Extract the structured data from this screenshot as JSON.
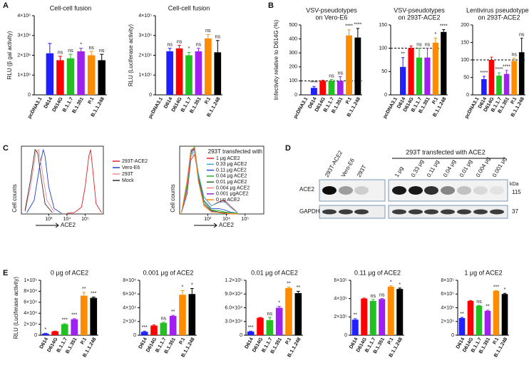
{
  "chart_data": [
    {
      "type": "bar",
      "panel": "A",
      "title": [
        "Cell-cell fusion"
      ],
      "ylabel": "RLU (β gal activity)",
      "categories": [
        "pcDNA3.1",
        "D614",
        "D614G",
        "B.1.1.7",
        "B.1.351",
        "P.1",
        "B.1.1.248"
      ],
      "colors": [
        "#000000",
        "#1f1fff",
        "#ff0000",
        "#22c022",
        "#a020f0",
        "#ff8c00",
        "#000000"
      ],
      "values": [
        0,
        2100000,
        1750000,
        1850000,
        2200000,
        2000000,
        1750000
      ],
      "errors": [
        0,
        500000,
        200000,
        200000,
        150000,
        200000,
        300000
      ],
      "sig": [
        null,
        null,
        "ns",
        "ns",
        "*",
        "ns",
        "ns"
      ],
      "ylim": [
        0,
        4000000
      ],
      "yticks": [
        0,
        {
          "value": 1000000,
          "label": "1×10⁶"
        },
        {
          "value": 2000000,
          "label": "2×10⁶"
        },
        {
          "value": 3000000,
          "label": "3×10⁶"
        },
        {
          "value": 4000000,
          "label": "4×10⁶"
        }
      ]
    },
    {
      "type": "bar",
      "title": [
        "Cell-cell fusion"
      ],
      "ylabel": "RLU (Luciferase activity)",
      "categories": [
        "pcDNA3.1",
        "D614",
        "D614G",
        "B.1.1.7",
        "B.1.351",
        "P.1",
        "B.1.1.248"
      ],
      "colors": [
        "#000000",
        "#1f1fff",
        "#ff0000",
        "#22c022",
        "#a020f0",
        "#ff8c00",
        "#000000"
      ],
      "values": [
        0,
        220000,
        235000,
        200000,
        220000,
        285000,
        215000
      ],
      "errors": [
        0,
        15000,
        15000,
        15000,
        15000,
        20000,
        60000
      ],
      "sig": [
        null,
        "ns",
        "ns",
        "*",
        "ns",
        "ns",
        "ns"
      ],
      "ylim": [
        0,
        400000
      ],
      "yticks": [
        0,
        {
          "value": 100000,
          "label": "1×10⁵"
        },
        {
          "value": 200000,
          "label": "2×10⁵"
        },
        {
          "value": 300000,
          "label": "3×10⁵"
        },
        {
          "value": 400000,
          "label": "4×10⁵"
        }
      ]
    },
    {
      "type": "bar",
      "panel": "B",
      "title": [
        "VSV-pseudotypes",
        "on Vero-E6"
      ],
      "ylabel": "Infectivity relative to D614G (%)",
      "categories": [
        "pcDNA3.1",
        "D614",
        "D614G",
        "B.1.1.7",
        "B.1.351",
        "P.1",
        "B.1.1.248"
      ],
      "colors": [
        "#000000",
        "#1f1fff",
        "#ff0000",
        "#22c022",
        "#a020f0",
        "#ff8c00",
        "#000000"
      ],
      "values": [
        0,
        50,
        100,
        100,
        100,
        425,
        410
      ],
      "errors": [
        0,
        10,
        5,
        10,
        30,
        40,
        65
      ],
      "sig": [
        null,
        "****",
        null,
        "ns",
        "ns",
        "****",
        "****"
      ],
      "ref_line": 100,
      "ylim": [
        0,
        500
      ],
      "yticks": [
        0,
        100,
        200,
        300,
        400,
        500
      ]
    },
    {
      "type": "bar",
      "title": [
        "VSV-pseudotypes",
        "on 293T-ACE2"
      ],
      "categories": [
        "pcDNA3.1",
        "D614",
        "D614G",
        "B.1.1.7",
        "B.1.351",
        "P.1",
        "B.1.1.248"
      ],
      "colors": [
        "#000000",
        "#1f1fff",
        "#ff0000",
        "#22c022",
        "#a020f0",
        "#ff8c00",
        "#000000"
      ],
      "values": [
        0,
        60,
        100,
        80,
        80,
        112,
        135
      ],
      "errors": [
        0,
        20,
        5,
        20,
        20,
        10,
        5
      ],
      "sig": [
        null,
        "**",
        null,
        "ns",
        "ns",
        "*",
        "****"
      ],
      "ref_line": 100,
      "ylim": [
        0,
        150
      ],
      "yticks": [
        0,
        50,
        100,
        150
      ]
    },
    {
      "type": "bar",
      "title": [
        "Lentivirus pseudotypes",
        "on 293T-ACE2"
      ],
      "categories": [
        "pcDNA3.1",
        "D614",
        "D614G",
        "B.1.1.7",
        "B.1.351",
        "P.1",
        "B.1.1.248"
      ],
      "colors": [
        "#000000",
        "#1f1fff",
        "#ff0000",
        "#22c022",
        "#a020f0",
        "#ff8c00",
        "#000000"
      ],
      "values": [
        0,
        45,
        100,
        55,
        60,
        97,
        122
      ],
      "errors": [
        0,
        8,
        8,
        8,
        10,
        8,
        40
      ],
      "sig": [
        null,
        "****",
        null,
        "****",
        "****",
        "ns",
        "ns"
      ],
      "ref_line": 100,
      "ylim": [
        0,
        200
      ],
      "yticks": [
        0,
        50,
        100,
        150,
        200
      ]
    },
    {
      "type": "line",
      "panel": "C",
      "ylabel": "Cell counts",
      "xlabel": "ACE2",
      "xlim": [
        1.5,
        6
      ],
      "ylim": [
        0,
        100
      ],
      "xticks": [
        {
          "value": 3,
          "label": "10³"
        },
        {
          "value": 4,
          "label": "10⁴"
        },
        {
          "value": 5,
          "label": "10⁵"
        }
      ],
      "series": [
        {
          "name": "293T-ACE2",
          "color": "#e0202a",
          "x": [
            4.0,
            4.4,
            4.8,
            5.0,
            5.2,
            5.3,
            5.4,
            5.6,
            5.9
          ],
          "values": [
            1,
            2,
            10,
            40,
            85,
            95,
            70,
            15,
            2
          ]
        },
        {
          "name": "Vero-E6",
          "color": "#1f3fd0",
          "x": [
            1.8,
            2.2,
            2.5,
            2.7,
            2.8,
            3.0,
            3.3,
            3.7
          ],
          "values": [
            2,
            20,
            70,
            95,
            85,
            40,
            8,
            1
          ]
        },
        {
          "name": "293T",
          "color": "#f08a8a",
          "x": [
            1.7,
            2.0,
            2.3,
            2.45,
            2.6,
            2.9,
            3.3
          ],
          "values": [
            3,
            40,
            92,
            95,
            70,
            20,
            3
          ]
        },
        {
          "name": "Mock",
          "color": "#333333",
          "x": [
            1.7,
            2.0,
            2.25,
            2.4,
            2.55,
            2.8,
            3.2
          ],
          "values": [
            5,
            50,
            95,
            90,
            60,
            15,
            2
          ]
        }
      ]
    },
    {
      "type": "line",
      "title": [
        "293T transfected with"
      ],
      "ylabel": "Cell counts",
      "xlabel": "ACE2",
      "xlim": [
        1.5,
        6
      ],
      "ylim": [
        0,
        100
      ],
      "xticks": [
        {
          "value": 3,
          "label": "10³"
        },
        {
          "value": 4,
          "label": "10⁴"
        },
        {
          "value": 5,
          "label": "10⁵"
        }
      ],
      "series": [
        {
          "name": "1 μg ACE2",
          "color": "#e0202a",
          "x": [
            1.6,
            1.9,
            2.1,
            2.3,
            2.5,
            2.8,
            3.2,
            3.6,
            3.9,
            4.2,
            4.6
          ],
          "values": [
            2,
            30,
            80,
            88,
            55,
            25,
            12,
            18,
            20,
            12,
            2
          ]
        },
        {
          "name": "0.33 μg ACE2",
          "color": "#3fa9d6",
          "x": [
            1.6,
            1.9,
            2.1,
            2.3,
            2.5,
            2.8,
            3.2,
            3.6,
            3.9,
            4.2,
            4.6
          ],
          "values": [
            2,
            35,
            85,
            92,
            60,
            25,
            12,
            17,
            18,
            10,
            2
          ]
        },
        {
          "name": "0.11 μg ACE2",
          "color": "#2b4fd8",
          "x": [
            1.6,
            1.9,
            2.1,
            2.3,
            2.5,
            2.8,
            3.2,
            3.6,
            3.9,
            4.2,
            4.6
          ],
          "values": [
            2,
            40,
            88,
            95,
            55,
            20,
            8,
            8,
            6,
            3,
            1
          ]
        },
        {
          "name": "0.04 μg ACE2",
          "color": "#22b022",
          "x": [
            1.6,
            1.9,
            2.1,
            2.3,
            2.5,
            2.8,
            3.2,
            3.6,
            3.9,
            4.2,
            4.6
          ],
          "values": [
            2,
            40,
            90,
            100,
            55,
            18,
            6,
            5,
            3,
            2,
            1
          ]
        },
        {
          "name": "0.01 μg ACE2",
          "color": "#1e6e1e",
          "x": [
            1.6,
            1.9,
            2.1,
            2.3,
            2.5,
            2.8,
            3.2,
            3.6,
            3.9,
            4.2,
            4.6
          ],
          "values": [
            2,
            45,
            92,
            96,
            52,
            15,
            5,
            3,
            2,
            1,
            0
          ]
        },
        {
          "name": "0.004 μg ACE2",
          "color": "#f08080",
          "x": [
            1.6,
            1.9,
            2.1,
            2.3,
            2.5,
            2.8,
            3.2,
            3.6,
            3.9,
            4.2,
            4.6
          ],
          "values": [
            2,
            45,
            90,
            94,
            50,
            14,
            4,
            2,
            1,
            1,
            0
          ]
        },
        {
          "name": "0.001 μgACE2",
          "color": "#8a2be2",
          "x": [
            1.6,
            1.9,
            2.1,
            2.3,
            2.5,
            2.8,
            3.2,
            3.6,
            3.9,
            4.2,
            4.6
          ],
          "values": [
            2,
            48,
            93,
            97,
            50,
            12,
            4,
            2,
            1,
            0,
            0
          ]
        },
        {
          "name": "0 μg ACE2",
          "color": "#ff8c00",
          "x": [
            1.6,
            1.9,
            2.1,
            2.3,
            2.5,
            2.8,
            3.2,
            3.6,
            3.9,
            4.2,
            4.6
          ],
          "values": [
            2,
            50,
            95,
            98,
            48,
            12,
            3,
            2,
            1,
            0,
            0
          ]
        }
      ]
    },
    {
      "type": "bar",
      "panel": "E",
      "title": [
        "0 μg of ACE2"
      ],
      "ylabel": "RLU (Luciferase activity)",
      "categories": [
        "D614",
        "D614G",
        "B.1.1.7",
        "B.1.351",
        "P.1",
        "B.1.1.248"
      ],
      "colors": [
        "#1f1fff",
        "#ff0000",
        "#22c022",
        "#a020f0",
        "#ff8c00",
        "#000000"
      ],
      "values": [
        3000,
        7000,
        20000,
        29000,
        72000,
        68000
      ],
      "errors": [
        500,
        500,
        1000,
        1000,
        6000,
        1500
      ],
      "sig": [
        "*",
        null,
        "***",
        "***",
        "**",
        "***"
      ],
      "ylim": [
        0,
        100000
      ],
      "yticks": [
        0,
        {
          "value": 20000,
          "label": "2×10⁴"
        },
        {
          "value": 40000,
          "label": "4×10⁴"
        },
        {
          "value": 60000,
          "label": "6×10⁴"
        },
        {
          "value": 80000,
          "label": "8×10⁴"
        },
        {
          "value": 100000,
          "label": "1×10⁵"
        }
      ]
    },
    {
      "type": "bar",
      "title": [
        "0.001 μg of ACE2"
      ],
      "categories": [
        "D614",
        "D614G",
        "B.1.1.7",
        "B.1.351",
        "P.1",
        "B.1.1.248"
      ],
      "colors": [
        "#1f1fff",
        "#ff0000",
        "#22c022",
        "#a020f0",
        "#ff8c00",
        "#000000"
      ],
      "values": [
        5000,
        14000,
        18000,
        28000,
        59000,
        60000
      ],
      "errors": [
        1000,
        1000,
        1000,
        1000,
        6000,
        8000
      ],
      "sig": [
        "***",
        null,
        "ns",
        "**",
        "*",
        "*"
      ],
      "ylim": [
        0,
        80000
      ],
      "yticks": [
        0,
        {
          "value": 20000,
          "label": "2×10⁴"
        },
        {
          "value": 40000,
          "label": "4×10⁴"
        },
        {
          "value": 60000,
          "label": "6×10⁴"
        },
        {
          "value": 80000,
          "label": "8×10⁴"
        }
      ]
    },
    {
      "type": "bar",
      "title": [
        "0.01 μg of ACE2"
      ],
      "categories": [
        "D614",
        "D614G",
        "B.1.1.7",
        "B.1.351",
        "P.1",
        "B.1.1.248"
      ],
      "colors": [
        "#1f1fff",
        "#ff0000",
        "#22c022",
        "#a020f0",
        "#ff8c00",
        "#000000"
      ],
      "values": [
        8000,
        38000,
        33000,
        60000,
        103000,
        92000
      ],
      "errors": [
        1000,
        1000,
        6000,
        3000,
        2000,
        4000
      ],
      "sig": [
        "***",
        null,
        "ns",
        "*",
        "**",
        "**"
      ],
      "ylim": [
        0,
        120000
      ],
      "yticks": [
        0,
        {
          "value": 30000,
          "label": "3.0×10⁴"
        },
        {
          "value": 60000,
          "label": "6.0×10⁴"
        },
        {
          "value": 90000,
          "label": "9.0×10⁴"
        },
        {
          "value": 120000,
          "label": "1.2×10⁵"
        }
      ]
    },
    {
      "type": "bar",
      "title": [
        "0.11 μg of ACE2"
      ],
      "categories": [
        "D614",
        "D614G",
        "B.1.1.7",
        "B.1.351",
        "P.1",
        "B.1.1.248"
      ],
      "colors": [
        "#1f1fff",
        "#ff0000",
        "#22c022",
        "#a020f0",
        "#ff8c00",
        "#000000"
      ],
      "values": [
        170000,
        400000,
        375000,
        395000,
        530000,
        505000
      ],
      "errors": [
        10000,
        5000,
        15000,
        5000,
        10000,
        10000
      ],
      "sig": [
        "**",
        null,
        "ns",
        "ns",
        "*",
        "*"
      ],
      "ylim": [
        0,
        600000
      ],
      "yticks": [
        0,
        {
          "value": 200000,
          "label": "2×10⁵"
        },
        {
          "value": 400000,
          "label": "4×10⁵"
        },
        {
          "value": 600000,
          "label": "6×10⁵"
        }
      ]
    },
    {
      "type": "bar",
      "title": [
        "1 μg of ACE2"
      ],
      "categories": [
        "D614",
        "D614G",
        "B.1.1.7",
        "B.1.351",
        "P.1",
        "B.1.1.248"
      ],
      "colors": [
        "#1f1fff",
        "#ff0000",
        "#22c022",
        "#a020f0",
        "#ff8c00",
        "#000000"
      ],
      "values": [
        250000,
        500000,
        430000,
        355000,
        645000,
        600000
      ],
      "errors": [
        10000,
        5000,
        5000,
        10000,
        5000,
        10000
      ],
      "sig": [
        "**",
        null,
        "ns",
        "**",
        "***",
        "*"
      ],
      "ylim": [
        0,
        800000
      ],
      "yticks": [
        0,
        {
          "value": 200000,
          "label": "2×10⁵"
        },
        {
          "value": 400000,
          "label": "4×10⁵"
        },
        {
          "value": 600000,
          "label": "6×10⁵"
        },
        {
          "value": 800000,
          "label": "8×10⁵"
        }
      ]
    }
  ],
  "blot": {
    "panel": "D",
    "group_label": "293T transfected with ACE2",
    "lanes": [
      "293T-ACE2",
      "Vero-E6",
      "293T",
      "1 μg",
      "0.33 μg",
      "0.11 μg",
      "0.04 μg",
      "0.01 μg",
      "0.004 μg",
      "0.001 μg"
    ],
    "rows": [
      "ACE2",
      "GAPDH"
    ],
    "kda_label": "kDa",
    "kda": [
      "115",
      "37"
    ]
  }
}
